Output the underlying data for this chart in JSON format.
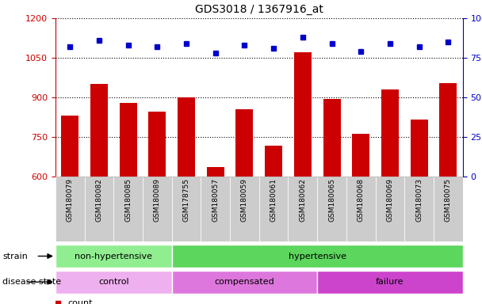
{
  "title": "GDS3018 / 1367916_at",
  "samples": [
    "GSM180079",
    "GSM180082",
    "GSM180085",
    "GSM180089",
    "GSM178755",
    "GSM180057",
    "GSM180059",
    "GSM180061",
    "GSM180062",
    "GSM180065",
    "GSM180068",
    "GSM180069",
    "GSM180073",
    "GSM180075"
  ],
  "counts": [
    830,
    950,
    880,
    845,
    900,
    635,
    855,
    715,
    1070,
    895,
    760,
    930,
    815,
    955
  ],
  "percentile_ranks": [
    82,
    86,
    83,
    82,
    84,
    78,
    83,
    81,
    88,
    84,
    79,
    84,
    82,
    85
  ],
  "ylim_left": [
    600,
    1200
  ],
  "ylim_right": [
    0,
    100
  ],
  "yticks_left": [
    600,
    750,
    900,
    1050,
    1200
  ],
  "ytick_labels_left": [
    "600",
    "750",
    "900",
    "1050",
    "1200"
  ],
  "yticks_right": [
    0,
    25,
    50,
    75,
    100
  ],
  "ytick_labels_right": [
    "0",
    "25",
    "50",
    "75",
    "100%"
  ],
  "strain_groups": [
    {
      "label": "non-hypertensive",
      "start": 0,
      "end": 4,
      "color": "#90EE90"
    },
    {
      "label": "hypertensive",
      "start": 4,
      "end": 14,
      "color": "#5CD65C"
    }
  ],
  "disease_groups": [
    {
      "label": "control",
      "start": 0,
      "end": 4,
      "color": "#EEB0EE"
    },
    {
      "label": "compensated",
      "start": 4,
      "end": 9,
      "color": "#DD77DD"
    },
    {
      "label": "failure",
      "start": 9,
      "end": 14,
      "color": "#CC44CC"
    }
  ],
  "bar_color": "#CC0000",
  "dot_color": "#0000CC",
  "tick_color_left": "#CC0000",
  "tick_color_right": "#0000CC",
  "xtick_bg_color": "#CCCCCC",
  "bar_bottom": 600
}
